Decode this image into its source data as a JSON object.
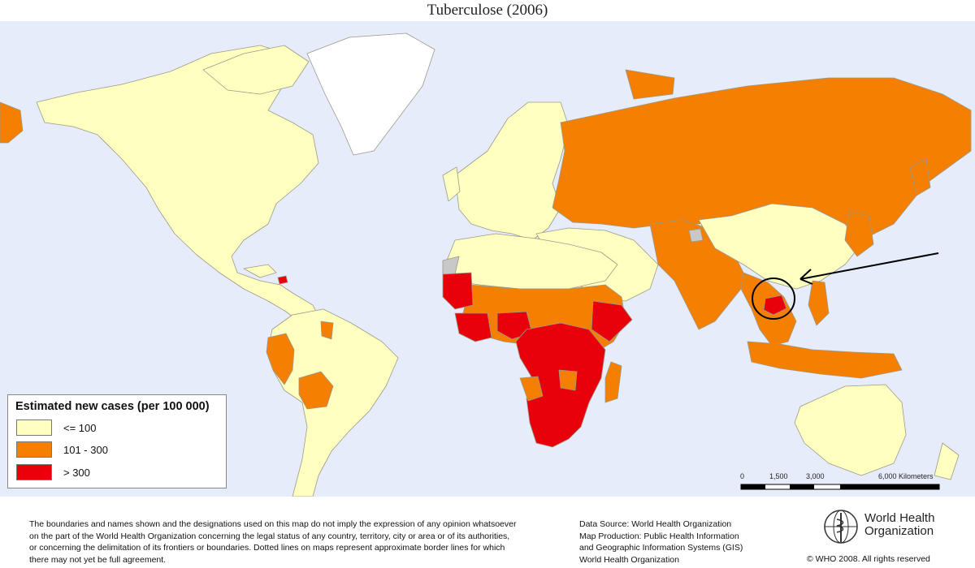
{
  "title": "Tuberculose (2006)",
  "legend": {
    "title": "Estimated new cases (per 100 000)",
    "items": [
      {
        "label": "<= 100",
        "color": "#ffffc0"
      },
      {
        "label": "101 - 300",
        "color": "#f57f00"
      },
      {
        "label": "> 300",
        "color": "#e8000b"
      }
    ]
  },
  "colors": {
    "ocean": "#e6ecfa",
    "no_data": "#ffffff",
    "disputed": "#c8c8c8",
    "border": "#9a9a8a",
    "annotation": "#000000"
  },
  "scale_bar": {
    "ticks": [
      "0",
      "1,500",
      "3,000",
      "6,000 Kilometers"
    ]
  },
  "annotation": {
    "description": "arrow pointing to circled country",
    "icon": "arrow-with-circle"
  },
  "footer": {
    "disclaimer": [
      "The boundaries and names shown and the designations used on this map do not imply the expression of any opinion whatsoever",
      "on the part of the World Health Organization concerning the legal status of any country, territory, city or area or of its authorities,",
      "or concerning the delimitation of its frontiers or boundaries.  Dotted lines on maps represent approximate border lines for which",
      "there may not yet be full agreement."
    ],
    "source": [
      "Data Source: World Health Organization",
      "Map Production: Public Health Information",
      "and Geographic Information Systems (GIS)",
      "World Health Organization"
    ],
    "logo_line1": "World Health",
    "logo_line2": "Organization",
    "logo_icon": "who-emblem-icon",
    "copyright": "© WHO 2008. All rights reserved"
  }
}
